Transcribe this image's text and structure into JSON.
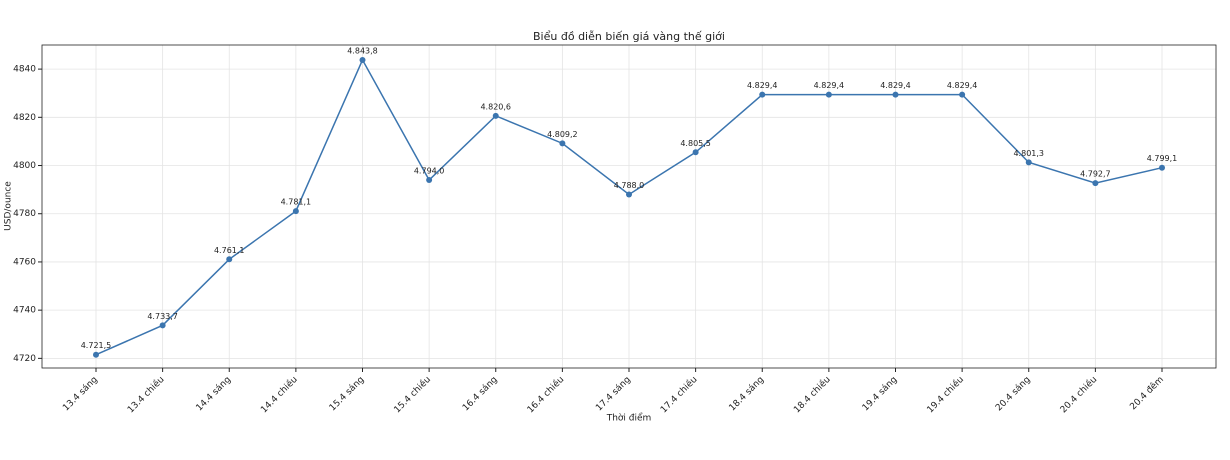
{
  "chart_data": {
    "type": "line",
    "title": "Biểu đồ diễn biến giá vàng thế giới",
    "xlabel": "Thời điểm",
    "ylabel": "USD/ounce",
    "categories": [
      "13.4 sáng",
      "13.4 chiều",
      "14.4 sáng",
      "14.4 chiều",
      "15.4 sáng",
      "15.4 chiều",
      "16.4 sáng",
      "16.4 chiều",
      "17.4 sáng",
      "17.4 chiều",
      "18.4 sáng",
      "18.4 chiều",
      "19.4 sáng",
      "19.4 chiều",
      "20.4 sáng",
      "20.4 chiều",
      "20.4 đêm"
    ],
    "values": [
      4721.5,
      4733.7,
      4761.1,
      4781.1,
      4843.8,
      4794.0,
      4820.6,
      4809.2,
      4788.0,
      4805.5,
      4829.4,
      4829.4,
      4829.4,
      4829.4,
      4801.3,
      4792.7,
      4799.1
    ],
    "value_labels": [
      "4.721,5",
      "4.733,7",
      "4.761,1",
      "4.781,1",
      "4.843,8",
      "4.794,0",
      "4.820,6",
      "4.809,2",
      "4.788,0",
      "4.805,5",
      "4.829,4",
      "4.829,4",
      "4.829,4",
      "4.829,4",
      "4.801,3",
      "4.792,7",
      "4.799,1"
    ],
    "color": "#3b75af",
    "ylim": [
      4716,
      4850
    ],
    "yticks": [
      4720,
      4740,
      4760,
      4780,
      4800,
      4820,
      4840
    ],
    "grid": true
  }
}
